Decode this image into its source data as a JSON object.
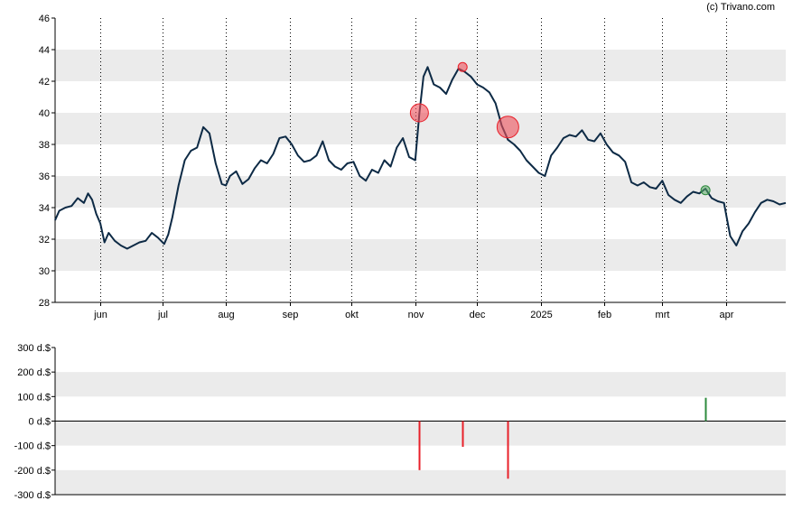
{
  "credit": "(c) Trivano.com",
  "colors": {
    "price_line": "#0d2a45",
    "band": "#ebebeb",
    "sell": "#e8202a",
    "sell_fill": "rgba(236,80,90,0.6)",
    "buy": "#2e8b3e",
    "buy_fill": "rgba(90,170,100,0.55)"
  },
  "chart_data": [
    {
      "type": "line",
      "name": "price",
      "ylim": [
        28,
        46
      ],
      "y_ticks": [
        28,
        30,
        32,
        34,
        36,
        38,
        40,
        42,
        44,
        46
      ],
      "x_range": [
        "2024-05-10",
        "2025-04-30"
      ],
      "x_ticks": [
        {
          "label": "jun",
          "date": "2024-06-01"
        },
        {
          "label": "jul",
          "date": "2024-07-01"
        },
        {
          "label": "aug",
          "date": "2024-08-01"
        },
        {
          "label": "sep",
          "date": "2024-09-01"
        },
        {
          "label": "okt",
          "date": "2024-10-01"
        },
        {
          "label": "nov",
          "date": "2024-11-01"
        },
        {
          "label": "dec",
          "date": "2024-12-01"
        },
        {
          "label": "2025",
          "date": "2025-01-01"
        },
        {
          "label": "feb",
          "date": "2025-02-01"
        },
        {
          "label": "mrt",
          "date": "2025-03-01"
        },
        {
          "label": "apr",
          "date": "2025-04-01"
        }
      ],
      "grid": "dotted vertical at month starts, alternating horizontal bands",
      "series": [
        {
          "x": [
            "2024-05-10",
            "2024-05-12",
            "2024-05-15",
            "2024-05-18",
            "2024-05-21",
            "2024-05-24",
            "2024-05-26",
            "2024-05-28",
            "2024-05-30",
            "2024-06-01",
            "2024-06-03",
            "2024-06-05",
            "2024-06-08",
            "2024-06-11",
            "2024-06-14",
            "2024-06-17",
            "2024-06-20",
            "2024-06-23",
            "2024-06-26",
            "2024-06-29",
            "2024-07-02",
            "2024-07-04",
            "2024-07-06",
            "2024-07-09",
            "2024-07-12",
            "2024-07-15",
            "2024-07-18",
            "2024-07-21",
            "2024-07-24",
            "2024-07-27",
            "2024-07-30",
            "2024-08-01",
            "2024-08-03",
            "2024-08-06",
            "2024-08-09",
            "2024-08-12",
            "2024-08-15",
            "2024-08-18",
            "2024-08-21",
            "2024-08-24",
            "2024-08-27",
            "2024-08-30",
            "2024-09-02",
            "2024-09-05",
            "2024-09-08",
            "2024-09-11",
            "2024-09-14",
            "2024-09-17",
            "2024-09-20",
            "2024-09-23",
            "2024-09-26",
            "2024-09-29",
            "2024-10-02",
            "2024-10-05",
            "2024-10-08",
            "2024-10-11",
            "2024-10-14",
            "2024-10-17",
            "2024-10-20",
            "2024-10-23",
            "2024-10-26",
            "2024-10-29",
            "2024-11-01",
            "2024-11-03",
            "2024-11-05",
            "2024-11-07",
            "2024-11-10",
            "2024-11-13",
            "2024-11-16",
            "2024-11-19",
            "2024-11-22",
            "2024-11-25",
            "2024-11-28",
            "2024-12-01",
            "2024-12-04",
            "2024-12-07",
            "2024-12-10",
            "2024-12-13",
            "2024-12-16",
            "2024-12-19",
            "2024-12-22",
            "2024-12-25",
            "2024-12-28",
            "2024-12-31",
            "2025-01-03",
            "2025-01-06",
            "2025-01-09",
            "2025-01-12",
            "2025-01-15",
            "2025-01-18",
            "2025-01-21",
            "2025-01-24",
            "2025-01-27",
            "2025-01-30",
            "2025-02-02",
            "2025-02-05",
            "2025-02-08",
            "2025-02-11",
            "2025-02-14",
            "2025-02-17",
            "2025-02-20",
            "2025-02-23",
            "2025-02-26",
            "2025-03-01",
            "2025-03-04",
            "2025-03-07",
            "2025-03-10",
            "2025-03-13",
            "2025-03-16",
            "2025-03-19",
            "2025-03-22",
            "2025-03-25",
            "2025-03-28",
            "2025-03-31",
            "2025-04-03",
            "2025-04-06",
            "2025-04-09",
            "2025-04-12",
            "2025-04-15",
            "2025-04-18",
            "2025-04-21",
            "2025-04-24",
            "2025-04-27",
            "2025-04-30"
          ],
          "y": [
            33.2,
            33.8,
            34.0,
            34.1,
            34.6,
            34.3,
            34.9,
            34.5,
            33.6,
            33.0,
            31.8,
            32.4,
            31.9,
            31.6,
            31.4,
            31.6,
            31.8,
            31.9,
            32.4,
            32.1,
            31.7,
            32.3,
            33.4,
            35.4,
            37.0,
            37.6,
            37.8,
            39.1,
            38.7,
            36.8,
            35.5,
            35.4,
            36.0,
            36.3,
            35.5,
            35.8,
            36.5,
            37.0,
            36.8,
            37.4,
            38.4,
            38.5,
            38.0,
            37.3,
            36.9,
            37.0,
            37.3,
            38.2,
            37.0,
            36.6,
            36.4,
            36.8,
            36.9,
            36.0,
            35.7,
            36.4,
            36.2,
            37.0,
            36.6,
            37.8,
            38.4,
            37.2,
            37.0,
            40.0,
            42.3,
            42.9,
            41.8,
            41.6,
            41.2,
            42.1,
            42.8,
            42.6,
            42.3,
            41.8,
            41.6,
            41.3,
            40.6,
            39.2,
            38.3,
            38.0,
            37.6,
            37.0,
            36.6,
            36.2,
            36.0,
            37.3,
            37.8,
            38.4,
            38.6,
            38.5,
            38.9,
            38.3,
            38.2,
            38.7,
            38.0,
            37.5,
            37.3,
            36.9,
            35.6,
            35.4,
            35.6,
            35.3,
            35.2,
            35.7,
            34.8,
            34.5,
            34.3,
            34.7,
            35.0,
            34.9,
            35.2,
            34.6,
            34.4,
            34.3,
            32.2,
            31.6,
            32.5,
            33.0,
            33.7,
            34.3,
            34.5,
            34.4,
            34.2,
            34.3
          ]
        }
      ],
      "markers": [
        {
          "date": "2024-11-03",
          "price": 40.0,
          "kind": "sell",
          "size": "medium"
        },
        {
          "date": "2024-11-24",
          "price": 42.9,
          "kind": "sell",
          "size": "small"
        },
        {
          "date": "2024-12-16",
          "price": 39.1,
          "kind": "sell",
          "size": "large"
        },
        {
          "date": "2025-03-22",
          "price": 35.1,
          "kind": "buy",
          "size": "small"
        }
      ]
    },
    {
      "type": "bar",
      "name": "transactions",
      "ylim": [
        -300,
        300
      ],
      "y_ticks": [
        {
          "value": 300,
          "label": "300 d.$"
        },
        {
          "value": 200,
          "label": "200 d.$"
        },
        {
          "value": 100,
          "label": "100 d.$"
        },
        {
          "value": 0,
          "label": "0 d.$"
        },
        {
          "value": -100,
          "label": "-100 d.$"
        },
        {
          "value": -200,
          "label": "-200 d.$"
        },
        {
          "value": -300,
          "label": "-300 d.$"
        }
      ],
      "x": [
        "2024-11-03",
        "2024-11-24",
        "2024-12-16",
        "2025-03-22"
      ],
      "values": [
        -200,
        -105,
        -235,
        95
      ]
    }
  ]
}
